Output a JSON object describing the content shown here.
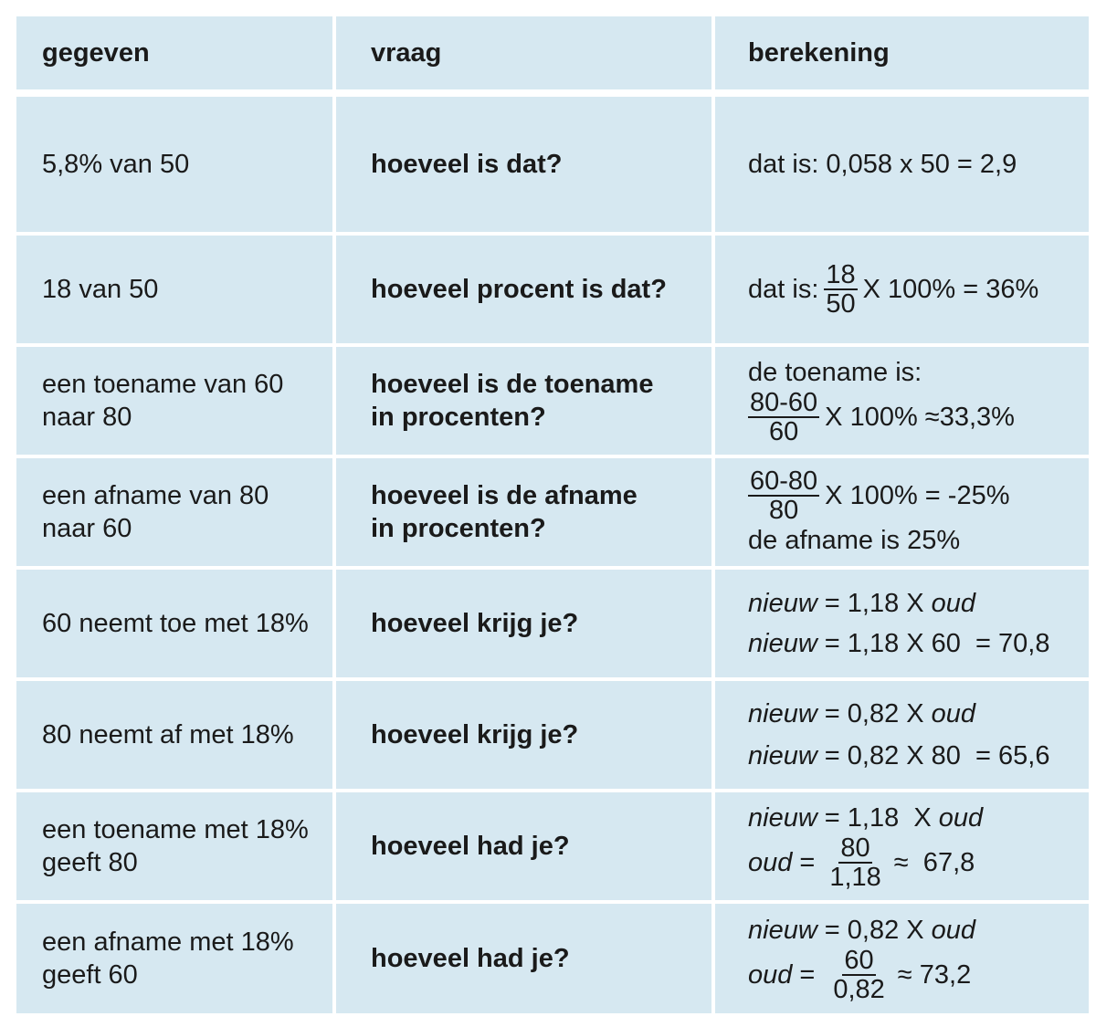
{
  "header": {
    "col1": "gegeven",
    "col2": "vraag",
    "col3": "berekening"
  },
  "rows": [
    {
      "given": [
        "5,8% van 50"
      ],
      "question": [
        "hoeveel is dat?"
      ],
      "calc": {
        "text": "dat is: 0,058 x 50 = 2,9"
      }
    },
    {
      "given": [
        "18 van 50"
      ],
      "question": [
        "hoeveel procent is dat?"
      ],
      "calc": {
        "prefix": "dat is:",
        "num": "18",
        "den": "50",
        "suffix": "X  100% = 36%"
      }
    },
    {
      "given": [
        "een toename van 60",
        "naar 80"
      ],
      "question": [
        "hoeveel is de toename",
        "in procenten?"
      ],
      "calc": {
        "line1": "de toename is:",
        "num": "80-60",
        "den": "60",
        "suffix": "X 100% ≈33,3%"
      }
    },
    {
      "given": [
        "een afname van 80",
        "naar 60"
      ],
      "question": [
        "hoeveel is de afname",
        "in procenten?"
      ],
      "calc": {
        "num": "60-80",
        "den": "80",
        "suffix": "X 100% = -25%",
        "line2": "de afname is 25%"
      }
    },
    {
      "given": [
        "60 neemt toe met 18%"
      ],
      "question": [
        "hoeveel krijg je?"
      ],
      "calc": {
        "l1_var": "nieuw",
        "l1_mid": "= 1,18 X",
        "l1_end": "oud",
        "l2_var": "nieuw",
        "l2_rest": "= 1,18 X 60  = 70,8"
      }
    },
    {
      "given": [
        "80 neemt af met 18%"
      ],
      "question": [
        "hoeveel krijg je?"
      ],
      "calc": {
        "l1_var": "nieuw",
        "l1_mid": "= 0,82 X",
        "l1_end": "oud",
        "l2_var": "nieuw",
        "l2_rest": "= 0,82 X 80  = 65,6"
      }
    },
    {
      "given": [
        "een toename met 18%",
        "geeft 80"
      ],
      "question": [
        "hoeveel had je?"
      ],
      "calc": {
        "l1_var": "nieuw",
        "l1_mid": "= 1,18  X",
        "l1_end": "oud",
        "l2_var": "oud",
        "l2_eq": "=",
        "num": "80",
        "den": "1,18",
        "suffix": "≈  67,8"
      }
    },
    {
      "given": [
        "een afname met 18%",
        "geeft 60"
      ],
      "question": [
        "hoeveel had je?"
      ],
      "calc": {
        "l1_var": "nieuw",
        "l1_mid": "= 0,82 X",
        "l1_end": "oud",
        "l2_var": "oud",
        "l2_eq": "=",
        "num": "60",
        "den": "0,82",
        "suffix": "≈ 73,2"
      }
    }
  ]
}
